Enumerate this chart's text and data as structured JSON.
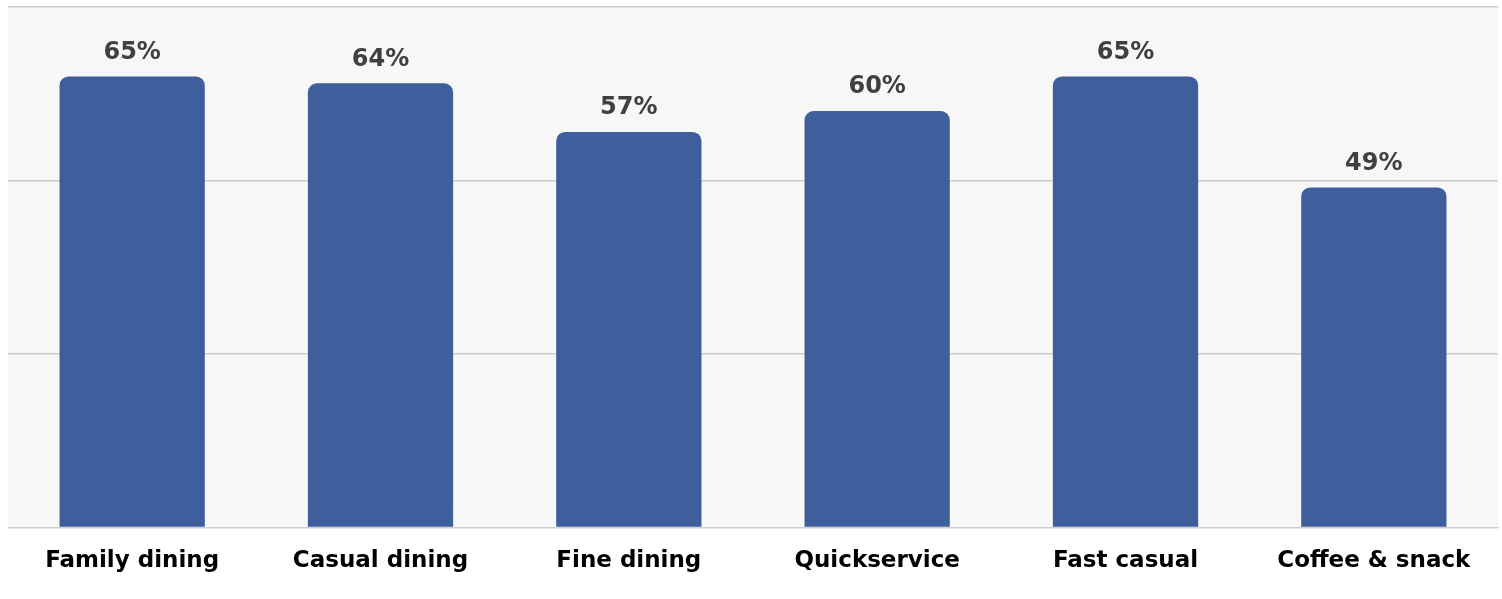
{
  "chart_data": {
    "type": "bar",
    "categories": [
      "Family dining",
      "Casual dining",
      "Fine dining",
      "Quickservice",
      "Fast casual",
      "Coffee & snack"
    ],
    "values": [
      65,
      64,
      57,
      60,
      65,
      49
    ],
    "value_labels": [
      "65%",
      "64%",
      "57%",
      "60%",
      "65%",
      "49%"
    ],
    "color": "#3f5e9c",
    "ylim": [
      0,
      75
    ],
    "yticks": [
      {
        "value": 0,
        "label": null
      },
      {
        "value": 25,
        "label": null
      },
      {
        "value": 50,
        "label": null
      },
      {
        "value": 75,
        "label": null
      }
    ],
    "grid": "y",
    "tick_labels": "x",
    "legend": false
  }
}
